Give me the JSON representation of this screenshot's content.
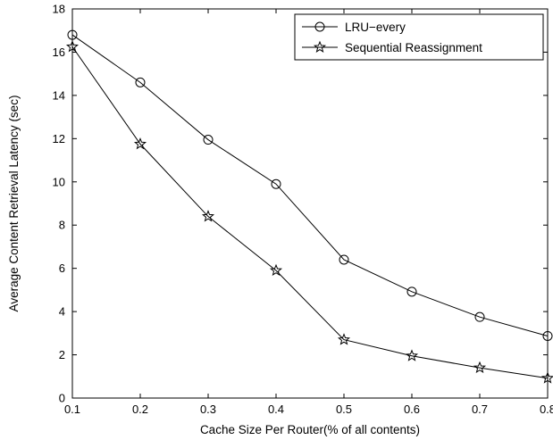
{
  "chart_data": {
    "type": "line",
    "title": "",
    "xlabel": "Cache Size Per Router(% of all contents)",
    "ylabel": "Average Content Retrieval Latency (sec)",
    "xlim": [
      0.1,
      0.8
    ],
    "ylim": [
      0,
      18
    ],
    "x_ticks": [
      "0.1",
      "0.2",
      "0.3",
      "0.4",
      "0.5",
      "0.6",
      "0.7",
      "0.8"
    ],
    "y_ticks": [
      "0",
      "2",
      "4",
      "6",
      "8",
      "10",
      "12",
      "14",
      "16",
      "18"
    ],
    "grid": false,
    "legend_position": "top-right",
    "x": [
      0.1,
      0.2,
      0.3,
      0.4,
      0.5,
      0.6,
      0.7,
      0.8
    ],
    "series": [
      {
        "name": "LRU−every",
        "marker": "circle",
        "color": "#000000",
        "values": [
          16.8,
          14.6,
          11.95,
          9.9,
          6.4,
          4.92,
          3.75,
          2.87
        ]
      },
      {
        "name": "Sequential Reassignment",
        "marker": "star",
        "color": "#000000",
        "values": [
          16.25,
          11.75,
          8.4,
          5.9,
          2.7,
          1.95,
          1.4,
          0.92
        ]
      }
    ]
  }
}
